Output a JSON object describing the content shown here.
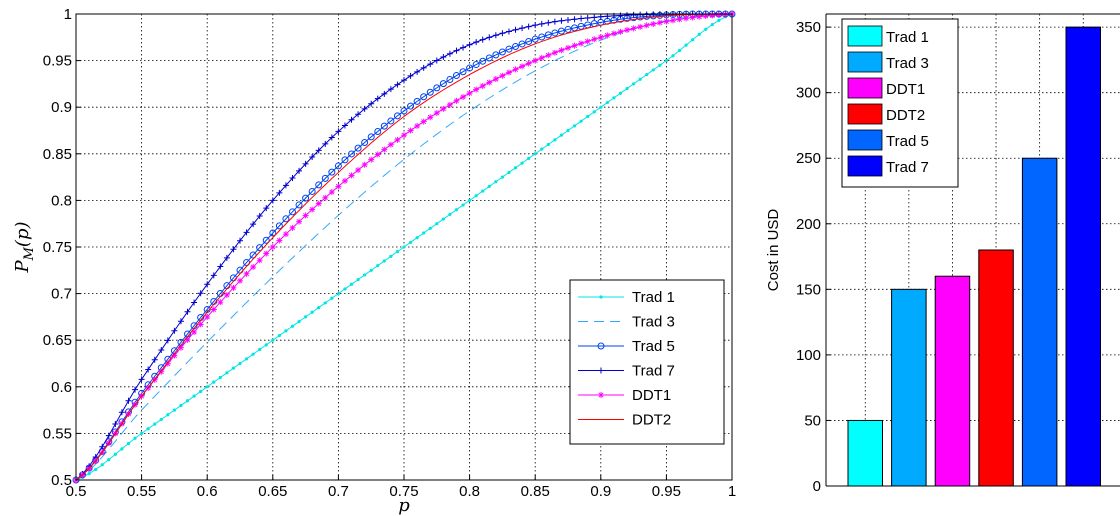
{
  "chart_data": [
    {
      "type": "line",
      "title": "",
      "xlabel": "p",
      "ylabel": "P_M(p)",
      "xlim": [
        0.5,
        1
      ],
      "ylim": [
        0.5,
        1
      ],
      "x_ticks": [
        "0.5",
        "0.55",
        "0.6",
        "0.65",
        "0.7",
        "0.75",
        "0.8",
        "0.85",
        "0.9",
        "0.95",
        "1"
      ],
      "y_ticks": [
        "0.5",
        "0.55",
        "0.6",
        "0.65",
        "0.7",
        "0.75",
        "0.8",
        "0.85",
        "0.9",
        "0.95",
        "1"
      ],
      "grid": true,
      "legend_position": "bottom-right",
      "x": [
        0.5,
        0.55,
        0.6,
        0.65,
        0.7,
        0.75,
        0.8,
        0.85,
        0.9,
        0.95,
        1.0
      ],
      "series": [
        {
          "name": "Trad 1",
          "color": "#00e5e5",
          "style": "solid",
          "marker": "dot",
          "values": [
            0.5,
            0.55,
            0.6,
            0.65,
            0.7,
            0.75,
            0.8,
            0.85,
            0.9,
            0.95,
            1.0
          ]
        },
        {
          "name": "Trad 3",
          "color": "#33aaff",
          "style": "dashed",
          "marker": "none",
          "values": [
            0.5,
            0.575,
            0.648,
            0.718,
            0.784,
            0.844,
            0.896,
            0.939,
            0.972,
            0.993,
            1.0
          ]
        },
        {
          "name": "Trad 5",
          "color": "#0044ee",
          "style": "solid",
          "marker": "circle",
          "values": [
            0.5,
            0.593,
            0.683,
            0.765,
            0.837,
            0.896,
            0.942,
            0.973,
            0.991,
            0.999,
            1.0
          ]
        },
        {
          "name": "Trad 7",
          "color": "#0000cc",
          "style": "solid",
          "marker": "plus",
          "values": [
            0.5,
            0.608,
            0.71,
            0.8,
            0.874,
            0.929,
            0.967,
            0.988,
            0.997,
            1.0,
            1.0
          ]
        },
        {
          "name": "DDT1",
          "color": "#ff00ff",
          "style": "solid",
          "marker": "star",
          "values": [
            0.5,
            0.59,
            0.675,
            0.75,
            0.815,
            0.87,
            0.915,
            0.95,
            0.975,
            0.992,
            1.0
          ]
        },
        {
          "name": "DDT2",
          "color": "#ff0000",
          "style": "solid",
          "marker": "none",
          "values": [
            0.5,
            0.59,
            0.68,
            0.76,
            0.83,
            0.89,
            0.935,
            0.968,
            0.988,
            0.998,
            1.0
          ]
        }
      ]
    },
    {
      "type": "bar",
      "title": "",
      "xlabel": "",
      "ylabel": "Cost in USD",
      "ylim": [
        0,
        360
      ],
      "y_ticks": [
        "0",
        "50",
        "100",
        "150",
        "200",
        "250",
        "300",
        "350"
      ],
      "grid": true,
      "legend_position": "top-left",
      "categories": [
        "Trad 1",
        "Trad 3",
        "DDT1",
        "DDT2",
        "Trad 5",
        "Trad 7"
      ],
      "values": [
        50,
        150,
        160,
        180,
        250,
        350
      ],
      "colors": [
        "#00ffff",
        "#00aaff",
        "#ff00ff",
        "#ff0000",
        "#0066ff",
        "#0000ff"
      ]
    }
  ]
}
